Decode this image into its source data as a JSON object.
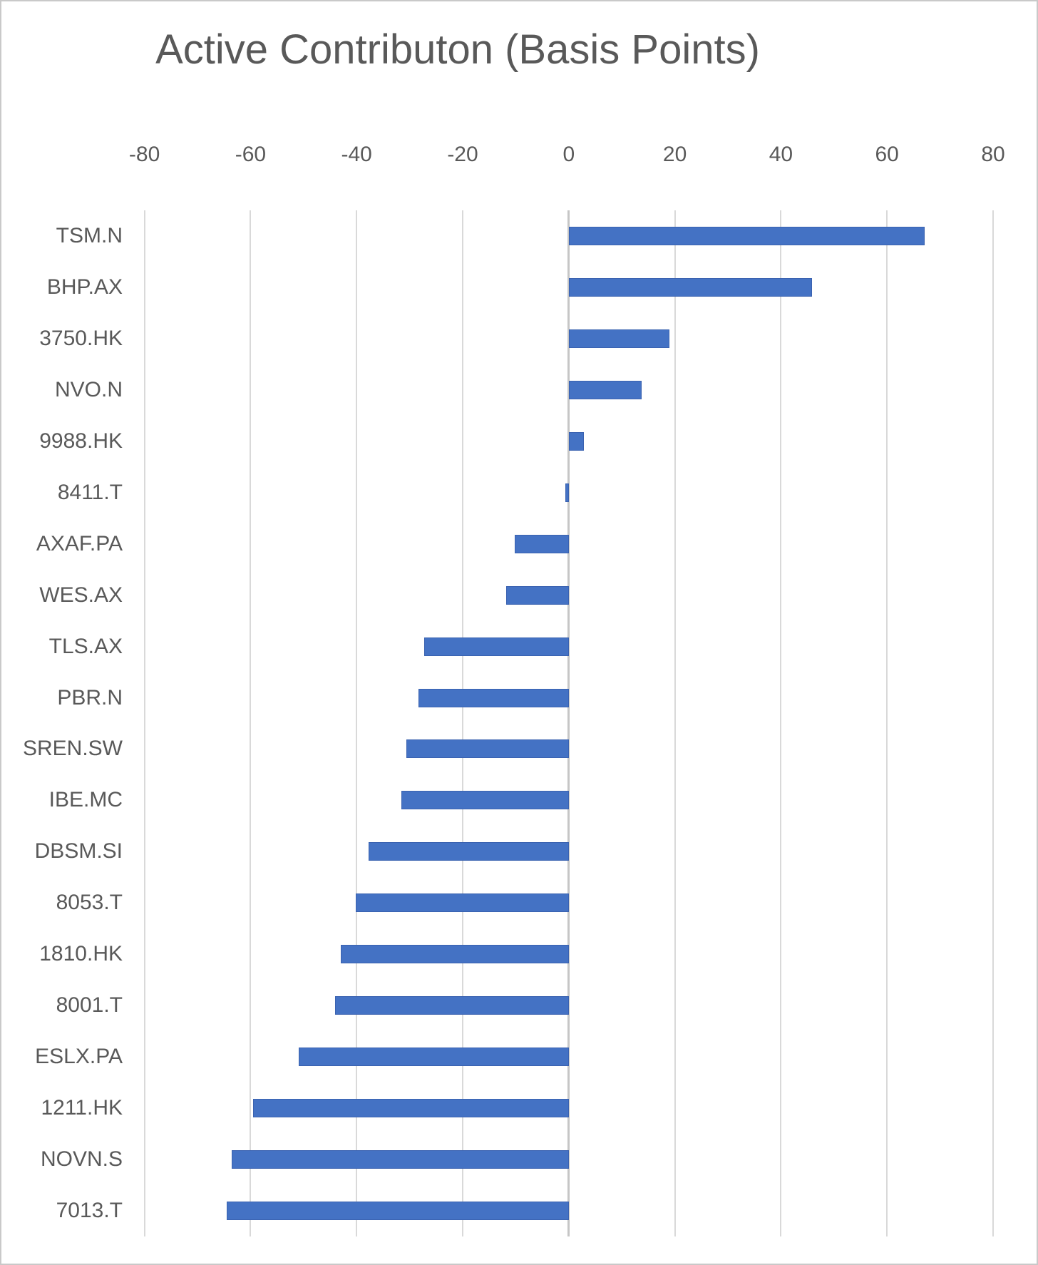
{
  "title": "Active Contributon (Basis Points)",
  "chart_data": {
    "type": "bar",
    "orientation": "horizontal",
    "title": "Active Contributon (Basis Points)",
    "categories": [
      "TSM.N",
      "BHP.AX",
      "3750.HK",
      "NVO.N",
      "9988.HK",
      "8411.T",
      "AXAF.PA",
      "WES.AX",
      "TLS.AX",
      "PBR.N",
      "SREN.SW",
      "IBE.MC",
      "DBSM.SI",
      "8053.T",
      "1810.HK",
      "8001.T",
      "ESLX.PA",
      "1211.HK",
      "NOVN.S",
      "7013.T"
    ],
    "values": [
      67.1,
      45.8,
      19.0,
      13.7,
      2.9,
      -0.7,
      -10.2,
      -11.8,
      -27.2,
      -28.3,
      -30.6,
      -31.6,
      -37.8,
      -40.2,
      -43.0,
      -44.0,
      -50.9,
      -59.5,
      -63.5,
      -64.5
    ],
    "xlabel": "",
    "ylabel": "",
    "xlim": [
      -80,
      80
    ],
    "xticks": [
      -80,
      -60,
      -40,
      -20,
      0,
      20,
      40,
      60,
      80
    ],
    "grid": true,
    "legend": "none",
    "bar_color": "#4472C4",
    "bar_border_color": "#3A62B0",
    "gridline_color": "#D9D9D9",
    "zero_line_color": "#C6C6C6",
    "text_color": "#595959"
  }
}
